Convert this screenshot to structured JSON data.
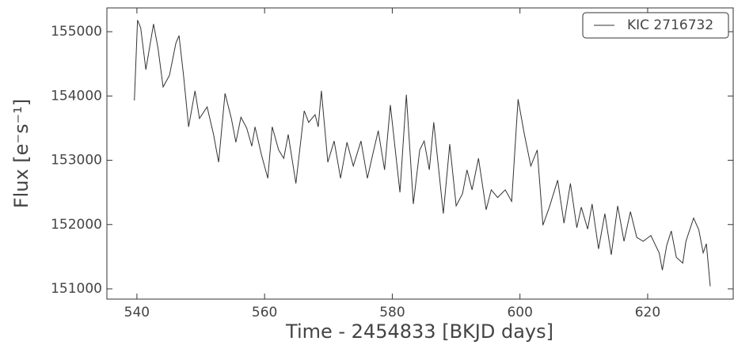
{
  "chart_data": {
    "type": "line",
    "xlabel": "Time - 2454833 [BKJD days]",
    "ylabel": "Flux [e⁻s⁻¹]",
    "x": [
      539.6,
      540.1,
      540.6,
      541.4,
      542.1,
      542.6,
      543.3,
      544.1,
      545.1,
      546.1,
      546.6,
      547.3,
      548.1,
      549.1,
      549.8,
      551.0,
      552.0,
      552.8,
      553.8,
      554.8,
      555.5,
      556.3,
      557.2,
      558.0,
      558.5,
      559.5,
      560.5,
      561.2,
      562.2,
      563.0,
      563.7,
      564.9,
      566.2,
      566.9,
      567.9,
      568.4,
      568.9,
      569.9,
      570.9,
      571.9,
      572.9,
      573.9,
      575.1,
      576.1,
      576.8,
      577.8,
      578.8,
      579.7,
      581.2,
      582.2,
      583.3,
      584.3,
      585.0,
      585.8,
      586.5,
      588.0,
      589.0,
      590.0,
      591.0,
      591.7,
      592.5,
      593.5,
      594.7,
      595.5,
      596.5,
      597.7,
      598.7,
      599.7,
      600.7,
      601.7,
      602.7,
      603.6,
      604.6,
      605.9,
      606.9,
      607.9,
      608.9,
      609.6,
      610.6,
      611.3,
      612.3,
      613.3,
      614.3,
      615.3,
      616.3,
      617.3,
      618.3,
      619.3,
      620.5,
      621.8,
      622.3,
      623.0,
      623.7,
      624.5,
      625.5,
      626.0,
      627.2,
      628.0,
      628.7,
      629.2,
      629.8
    ],
    "series": [
      {
        "name": "KIC 2716732",
        "color": "#333333",
        "values": [
          153930,
          155180,
          155060,
          154410,
          154820,
          155120,
          154750,
          154140,
          154320,
          154820,
          154940,
          154320,
          153520,
          154080,
          153650,
          153830,
          153400,
          152970,
          154040,
          153650,
          153280,
          153670,
          153500,
          153220,
          153520,
          153090,
          152720,
          153520,
          153160,
          153030,
          153400,
          152640,
          153770,
          153590,
          153710,
          153520,
          154080,
          152970,
          153300,
          152720,
          153280,
          152910,
          153300,
          152720,
          153030,
          153460,
          152850,
          153860,
          152500,
          154020,
          152320,
          153160,
          153300,
          152850,
          153590,
          152170,
          153250,
          152290,
          152480,
          152850,
          152540,
          153030,
          152230,
          152540,
          152420,
          152540,
          152360,
          153950,
          153400,
          152910,
          153160,
          151990,
          152270,
          152690,
          152020,
          152640,
          151950,
          152270,
          151930,
          152320,
          151620,
          152170,
          151530,
          152290,
          151740,
          152200,
          151800,
          151740,
          151830,
          151560,
          151290,
          151680,
          151900,
          151490,
          151400,
          151740,
          152100,
          151920,
          151560,
          151700,
          151040
        ]
      }
    ],
    "xlim": [
      535.3,
      633.4
    ],
    "ylim": [
      150840,
      155370
    ],
    "xticks": [
      540,
      560,
      580,
      600,
      620
    ],
    "yticks": [
      151000,
      152000,
      153000,
      154000,
      155000
    ],
    "legend": "upper right"
  }
}
